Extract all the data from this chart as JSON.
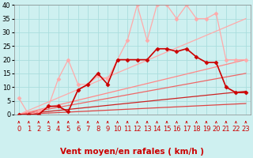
{
  "background_color": "#cef0f0",
  "grid_color": "#aadddd",
  "xlabel": "Vent moyen/en rafales ( km/h )",
  "xlabel_color": "#cc0000",
  "xlim": [
    -0.5,
    23.5
  ],
  "ylim": [
    0,
    40
  ],
  "xticks": [
    0,
    1,
    2,
    3,
    4,
    5,
    6,
    7,
    8,
    9,
    10,
    11,
    12,
    13,
    14,
    15,
    16,
    17,
    18,
    19,
    20,
    21,
    22,
    23
  ],
  "yticks": [
    0,
    5,
    10,
    15,
    20,
    25,
    30,
    35,
    40
  ],
  "lines": [
    {
      "x": [
        0,
        23
      ],
      "y": [
        0,
        4
      ],
      "color": "#dd4444",
      "linewidth": 0.9,
      "marker": null,
      "linestyle": "-"
    },
    {
      "x": [
        0,
        23
      ],
      "y": [
        0,
        8.5
      ],
      "color": "#cc2222",
      "linewidth": 0.9,
      "marker": null,
      "linestyle": "-"
    },
    {
      "x": [
        0,
        23
      ],
      "y": [
        0,
        15
      ],
      "color": "#ee6666",
      "linewidth": 0.9,
      "marker": null,
      "linestyle": "-"
    },
    {
      "x": [
        0,
        23
      ],
      "y": [
        0,
        20
      ],
      "color": "#ff8888",
      "linewidth": 0.9,
      "marker": null,
      "linestyle": "-"
    },
    {
      "x": [
        0,
        23
      ],
      "y": [
        0,
        35
      ],
      "color": "#ffaaaa",
      "linewidth": 0.9,
      "marker": null,
      "linestyle": "-"
    },
    {
      "x": [
        0,
        1,
        2,
        3,
        4,
        5,
        6,
        7,
        8,
        9,
        10,
        11,
        12,
        13,
        14,
        15,
        16,
        17,
        18,
        19,
        20,
        21,
        22,
        23
      ],
      "y": [
        6,
        0,
        1,
        3,
        13,
        20,
        11,
        11,
        14,
        13,
        20,
        27,
        40,
        27,
        40,
        40,
        35,
        40,
        35,
        35,
        37,
        20,
        20,
        20
      ],
      "color": "#ffaaaa",
      "linewidth": 0.9,
      "marker": "D",
      "markersize": 2.5,
      "linestyle": "-"
    },
    {
      "x": [
        0,
        1,
        2,
        3,
        4,
        5,
        6,
        7,
        8,
        9,
        10,
        11,
        12,
        13,
        14,
        15,
        16,
        17,
        18,
        19,
        20,
        21,
        22,
        23
      ],
      "y": [
        0,
        0,
        0,
        3,
        3,
        1,
        9,
        11,
        15,
        11,
        20,
        20,
        20,
        20,
        24,
        24,
        23,
        24,
        21,
        19,
        19,
        10,
        8,
        8
      ],
      "color": "#cc0000",
      "linewidth": 1.2,
      "marker": "D",
      "markersize": 2.5,
      "linestyle": "-"
    }
  ],
  "arrow_color": "#cc0000",
  "tick_fontsize": 6,
  "label_fontsize": 7.5
}
